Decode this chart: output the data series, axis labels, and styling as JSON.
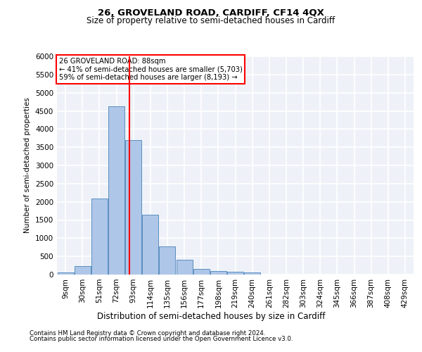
{
  "title1": "26, GROVELAND ROAD, CARDIFF, CF14 4QX",
  "title2": "Size of property relative to semi-detached houses in Cardiff",
  "xlabel": "Distribution of semi-detached houses by size in Cardiff",
  "ylabel": "Number of semi-detached properties",
  "footnote1": "Contains HM Land Registry data © Crown copyright and database right 2024.",
  "footnote2": "Contains public sector information licensed under the Open Government Licence v3.0.",
  "annotation_title": "26 GROVELAND ROAD: 88sqm",
  "annotation_line1": "← 41% of semi-detached houses are smaller (5,703)",
  "annotation_line2": "59% of semi-detached houses are larger (8,193) →",
  "bar_labels": [
    "9sqm",
    "30sqm",
    "51sqm",
    "72sqm",
    "93sqm",
    "114sqm",
    "135sqm",
    "156sqm",
    "177sqm",
    "198sqm",
    "219sqm",
    "240sqm",
    "261sqm",
    "282sqm",
    "303sqm",
    "324sqm",
    "345sqm",
    "366sqm",
    "387sqm",
    "408sqm",
    "429sqm"
  ],
  "bar_values": [
    50,
    240,
    2100,
    4620,
    3700,
    1650,
    780,
    400,
    160,
    100,
    70,
    60,
    0,
    0,
    0,
    0,
    0,
    0,
    0,
    0,
    0
  ],
  "bar_color": "#aec6e8",
  "bar_edge_color": "#5a8fc0",
  "property_line_color": "red",
  "ylim": [
    0,
    6000
  ],
  "yticks": [
    0,
    500,
    1000,
    1500,
    2000,
    2500,
    3000,
    3500,
    4000,
    4500,
    5000,
    5500,
    6000
  ],
  "annotation_box_color": "white",
  "annotation_box_edge": "red",
  "bg_color": "#eef2f8",
  "grid_color": "white"
}
